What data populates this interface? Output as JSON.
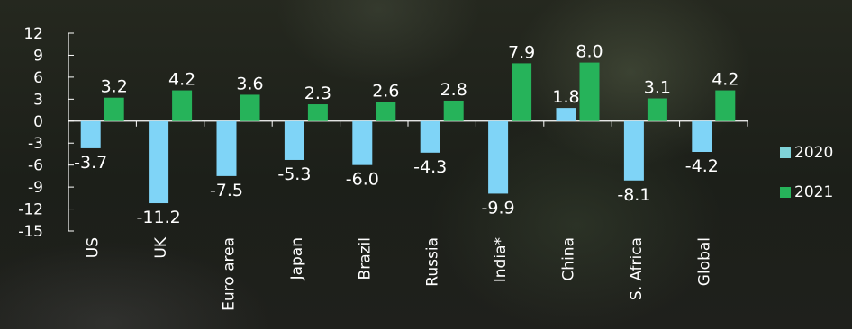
{
  "chart_data": {
    "type": "bar",
    "title": "",
    "xlabel": "",
    "ylabel": "",
    "ylim": [
      -15,
      12
    ],
    "yticks": [
      12,
      9,
      6,
      3,
      0,
      -3,
      -6,
      -9,
      -12,
      -15
    ],
    "categories": [
      "US",
      "UK",
      "Euro area",
      "Japan",
      "Brazil",
      "Russia",
      "India*",
      "China",
      "S. Africa",
      "Global"
    ],
    "series": [
      {
        "name": "2020",
        "color": "#7fd4f7",
        "legend_color": "#7fd3d8",
        "values": [
          -3.7,
          -11.2,
          -7.5,
          -5.3,
          -6.0,
          -4.3,
          -9.9,
          1.8,
          -8.1,
          -4.2
        ],
        "labels": [
          "-3.7",
          "-11.2",
          "-7.5",
          "-5.3",
          "-6.0",
          "-4.3",
          "-9.9",
          "1.8",
          "-8.1",
          "-4.2"
        ]
      },
      {
        "name": "2021",
        "color": "#26b35a",
        "legend_color": "#26b35a",
        "values": [
          3.2,
          4.2,
          3.6,
          2.3,
          2.6,
          2.8,
          7.9,
          8.0,
          3.1,
          4.2
        ],
        "labels": [
          "3.2",
          "4.2",
          "3.6",
          "2.3",
          "2.6",
          "2.8",
          "7.9",
          "8.0",
          "3.1",
          "4.2"
        ]
      }
    ],
    "grid": false,
    "legend_position": "right",
    "axis_color": "#ffffff"
  }
}
